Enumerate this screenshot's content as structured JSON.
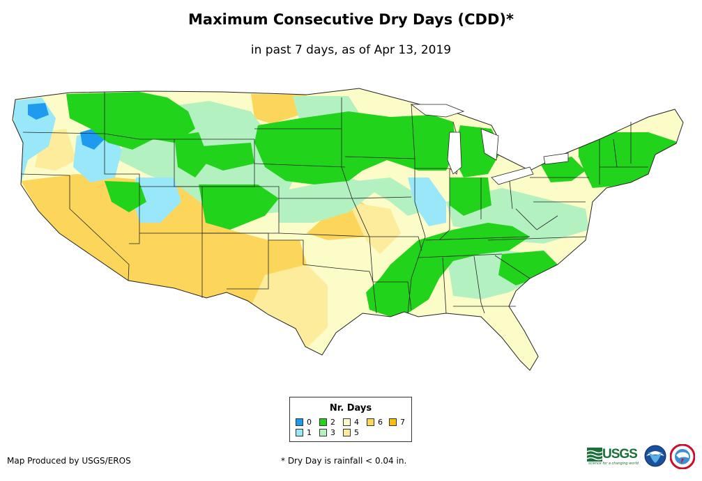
{
  "header": {
    "title": "Maximum Consecutive Dry Days (CDD)*",
    "subtitle": "in past 7 days, as of Apr 13, 2019"
  },
  "legend": {
    "title": "Nr. Days",
    "items": [
      {
        "label": "0",
        "color": "#1e9bef"
      },
      {
        "label": "1",
        "color": "#99e8fa"
      },
      {
        "label": "2",
        "color": "#22d31b"
      },
      {
        "label": "3",
        "color": "#b4f1c1"
      },
      {
        "label": "4",
        "color": "#fcfcc8"
      },
      {
        "label": "5",
        "color": "#fcec9b"
      },
      {
        "label": "6",
        "color": "#fcd65b"
      },
      {
        "label": "7",
        "color": "#fcbe06"
      }
    ]
  },
  "footer": {
    "credit": "Map Produced by USGS/EROS",
    "footnote": "* Dry Day is rainfall < 0.04 in.",
    "usgs_logo": "USGS",
    "usgs_tagline": "science for a changing world"
  },
  "icons": [
    "usgs-logo",
    "noaa-logo-icon",
    "nws-logo-icon"
  ]
}
